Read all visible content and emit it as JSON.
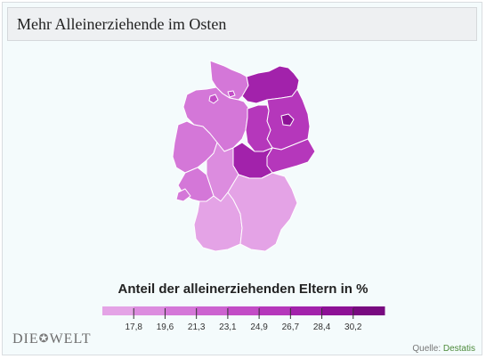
{
  "title": "Mehr Alleinerziehende im Osten",
  "legend": {
    "title": "Anteil der alleinerziehenden Eltern in %",
    "ticks": [
      "17,8",
      "19,6",
      "21,3",
      "23,1",
      "24,9",
      "26,7",
      "28,4",
      "30,2"
    ],
    "colors": [
      "#e4a3e6",
      "#dc8cdf",
      "#d477d8",
      "#cc63d0",
      "#c24cc6",
      "#b537bb",
      "#a222ab",
      "#8d1196",
      "#780a80"
    ]
  },
  "logo": {
    "left": "DIE",
    "mark": "✪",
    "right": "WELT"
  },
  "source": {
    "label": "Quelle:",
    "name": "Destatis"
  },
  "map_data": {
    "regions": [
      {
        "name": "Schleswig-Holstein",
        "color": "#d477d8"
      },
      {
        "name": "Hamburg",
        "color": "#c24cc6"
      },
      {
        "name": "Bremen",
        "color": "#c24cc6"
      },
      {
        "name": "Niedersachsen",
        "color": "#d477d8"
      },
      {
        "name": "Mecklenburg-Vorpommern",
        "color": "#a222ab"
      },
      {
        "name": "Berlin",
        "color": "#8d1196"
      },
      {
        "name": "Brandenburg",
        "color": "#b537bb"
      },
      {
        "name": "Sachsen-Anhalt",
        "color": "#b537bb"
      },
      {
        "name": "Sachsen",
        "color": "#b537bb"
      },
      {
        "name": "Thüringen",
        "color": "#a222ab"
      },
      {
        "name": "Nordrhein-Westfalen",
        "color": "#d477d8"
      },
      {
        "name": "Hessen",
        "color": "#dc8cdf"
      },
      {
        "name": "Rheinland-Pfalz",
        "color": "#d477d8"
      },
      {
        "name": "Saarland",
        "color": "#d477d8"
      },
      {
        "name": "Baden-Württemberg",
        "color": "#e4a3e6"
      },
      {
        "name": "Bayern",
        "color": "#e4a3e6"
      }
    ]
  }
}
